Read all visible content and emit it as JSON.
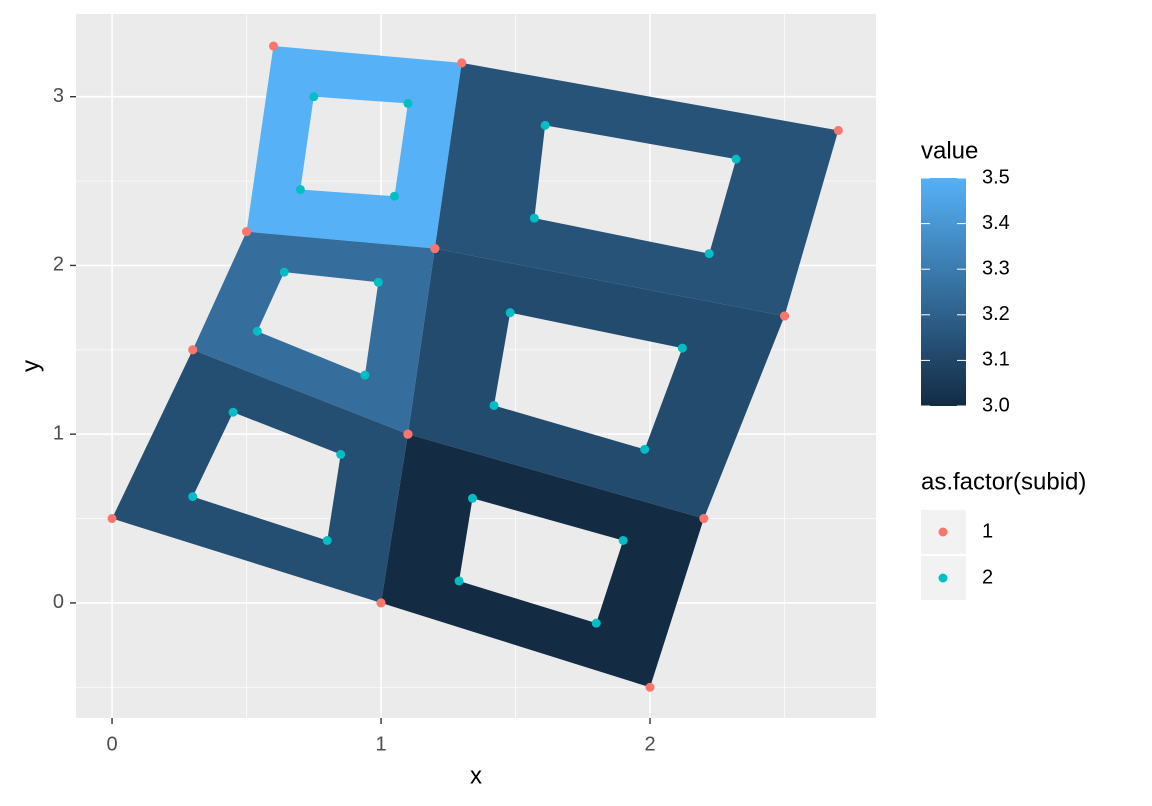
{
  "chart_data": {
    "type": "polygon",
    "x_label": "x",
    "y_label": "y",
    "xlim": [
      -0.134,
      2.84
    ],
    "ylim": [
      -0.682,
      3.49
    ],
    "xticks": [
      0,
      1,
      2
    ],
    "yticks": [
      0,
      1,
      2,
      3
    ],
    "grid": true,
    "polygons": [
      {
        "value": 3.5,
        "outer": {
          "x": [
            0.5,
            0.6,
            1.3,
            1.2
          ],
          "y": [
            2.2,
            3.3,
            3.2,
            2.1
          ]
        },
        "hole": {
          "x": [
            0.7,
            0.75,
            1.1,
            1.05
          ],
          "y": [
            2.45,
            3.0,
            2.96,
            2.41
          ]
        }
      },
      {
        "value": 3.15,
        "outer": {
          "x": [
            1.3,
            2.7,
            2.5,
            1.2
          ],
          "y": [
            3.2,
            2.8,
            1.7,
            2.1
          ]
        },
        "hole": {
          "x": [
            1.61,
            2.32,
            2.22,
            1.57
          ],
          "y": [
            2.83,
            2.63,
            2.07,
            2.28
          ]
        }
      },
      {
        "value": 3.25,
        "outer": {
          "x": [
            0.3,
            0.5,
            1.2,
            1.1
          ],
          "y": [
            1.5,
            2.2,
            2.1,
            1.0
          ]
        },
        "hole": {
          "x": [
            0.64,
            0.99,
            0.94,
            0.54
          ],
          "y": [
            1.96,
            1.9,
            1.35,
            1.61
          ]
        }
      },
      {
        "value": 3.12,
        "outer": {
          "x": [
            1.2,
            2.5,
            2.2,
            1.1
          ],
          "y": [
            2.1,
            1.7,
            0.5,
            1.0
          ]
        },
        "hole": {
          "x": [
            1.48,
            2.12,
            1.98,
            1.42
          ],
          "y": [
            1.72,
            1.51,
            0.91,
            1.17
          ]
        }
      },
      {
        "value": 3.13,
        "outer": {
          "x": [
            0,
            0.3,
            1.1,
            1
          ],
          "y": [
            0.5,
            1.5,
            1.0,
            0
          ]
        },
        "hole": {
          "x": [
            0.45,
            0.85,
            0.8,
            0.3
          ],
          "y": [
            1.13,
            0.88,
            0.37,
            0.63
          ]
        }
      },
      {
        "value": 3.0,
        "outer": {
          "x": [
            1,
            1.1,
            2.2,
            2
          ],
          "y": [
            0,
            1.0,
            0.5,
            -0.5
          ]
        },
        "hole": {
          "x": [
            1.34,
            1.9,
            1.8,
            1.29
          ],
          "y": [
            0.62,
            0.37,
            -0.12,
            0.13
          ]
        }
      }
    ],
    "fill_legend": {
      "title": "value",
      "limits": [
        3.0,
        3.5
      ],
      "low": "#132B43",
      "high": "#56B1F7",
      "ticks": [
        {
          "value": 3,
          "label": "3.0"
        },
        3.1,
        3.2,
        3.3,
        3.4,
        3.5
      ]
    },
    "point_legend": {
      "title": "as.factor(subid)",
      "items": [
        {
          "name": "1",
          "color": "#F8766D"
        },
        {
          "name": "2",
          "color": "#00BFC4"
        }
      ]
    }
  }
}
